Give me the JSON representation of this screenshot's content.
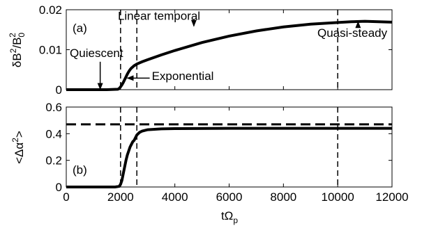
{
  "chart_data": [
    {
      "type": "line",
      "panel_label": "(a)",
      "ylabel": {
        "main": "δB",
        "sup1": "2",
        "mid": "/B",
        "sub": "0",
        "sup2": "2"
      },
      "xlim": [
        0,
        12000
      ],
      "ylim": [
        0,
        0.02
      ],
      "yticks": [
        0,
        0.01,
        0.02
      ],
      "ytick_labels": [
        "0",
        "0.01",
        "0.02"
      ],
      "vlines": [
        2000,
        2600,
        10000
      ],
      "series": [
        {
          "x": [
            0,
            500,
            1000,
            1500,
            1900,
            1950,
            2000,
            2050,
            2100,
            2150,
            2200,
            2250,
            2300,
            2350,
            2400,
            2450,
            2500,
            2550,
            2600,
            2700,
            2800,
            3000,
            3500,
            4000,
            5000,
            6000,
            7000,
            8000,
            9000,
            10000,
            10500,
            11000,
            11500,
            12000
          ],
          "y": [
            0,
            0,
            0,
            0,
            0.0001,
            0.0003,
            0.0007,
            0.0012,
            0.0018,
            0.0025,
            0.0032,
            0.0039,
            0.0045,
            0.005,
            0.0054,
            0.0057,
            0.006,
            0.0062,
            0.0064,
            0.0067,
            0.007,
            0.0075,
            0.0087,
            0.0098,
            0.0118,
            0.0134,
            0.0147,
            0.0157,
            0.0164,
            0.0168,
            0.017,
            0.0171,
            0.017,
            0.0169
          ]
        }
      ],
      "annotations": [
        {
          "text": "Linear temporal",
          "text_x": 1900,
          "text_y": 0.0175,
          "arrow_to": [
            4700,
            0.0159
          ]
        },
        {
          "text": "Quiescent",
          "text_x": 130,
          "text_y": 0.0082,
          "arrow_to": [
            1250,
            0.0001
          ]
        },
        {
          "text": "Exponential",
          "text_x": 3150,
          "text_y": 0.0024,
          "arrow_to": [
            2250,
            0.0029
          ]
        },
        {
          "text": "Quasi-steady",
          "text_x": 9250,
          "text_y": 0.0132,
          "arrow_to": [
            10750,
            0.017
          ]
        }
      ]
    },
    {
      "type": "line",
      "panel_label": "(b)",
      "ylabel": {
        "left": "<Δα",
        "sup": "2",
        "right": ">"
      },
      "xlabel": {
        "main": "tΩ",
        "sub": "p"
      },
      "xlim": [
        0,
        12000
      ],
      "ylim": [
        0,
        0.6
      ],
      "xticks": [
        0,
        2000,
        4000,
        6000,
        8000,
        10000,
        12000
      ],
      "xtick_labels": [
        "0",
        "2000",
        "4000",
        "6000",
        "8000",
        "10000",
        "12000"
      ],
      "yticks": [
        0,
        0.2,
        0.4,
        0.6
      ],
      "ytick_labels": [
        "0",
        "0.2",
        "0.4",
        "0.6"
      ],
      "vlines": [
        2000,
        2600,
        10000
      ],
      "hline": 0.47,
      "series": [
        {
          "x": [
            0,
            1000,
            1800,
            1950,
            2000,
            2050,
            2100,
            2150,
            2200,
            2250,
            2300,
            2350,
            2400,
            2450,
            2500,
            2550,
            2600,
            2700,
            2800,
            3000,
            3500,
            4000,
            6000,
            8000,
            10000,
            12000
          ],
          "y": [
            0,
            0,
            0,
            0.005,
            0.02,
            0.05,
            0.1,
            0.15,
            0.2,
            0.24,
            0.27,
            0.3,
            0.32,
            0.34,
            0.35,
            0.37,
            0.39,
            0.41,
            0.42,
            0.43,
            0.436,
            0.438,
            0.44,
            0.44,
            0.44,
            0.44
          ]
        }
      ]
    }
  ]
}
